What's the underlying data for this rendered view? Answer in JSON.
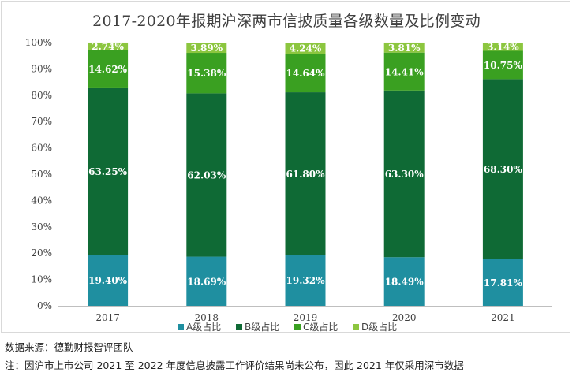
{
  "chart_data": {
    "type": "bar",
    "stacked": true,
    "title": "2017-2020年报期沪深两市信披质量各级数量及比例变动",
    "categories": [
      "2017",
      "2018",
      "2019",
      "2020",
      "2021"
    ],
    "series": [
      {
        "name": "A级占比",
        "color": "#1f8fa0",
        "values": [
          19.4,
          18.69,
          19.32,
          18.49,
          17.81
        ],
        "labels": [
          "19.40%",
          "18.69%",
          "19.32%",
          "18.49%",
          "17.81%"
        ]
      },
      {
        "name": "B级占比",
        "color": "#0f6a35",
        "values": [
          63.25,
          62.03,
          61.8,
          63.3,
          68.3
        ],
        "labels": [
          "63.25%",
          "62.03%",
          "61.80%",
          "63.30%",
          "68.30%"
        ]
      },
      {
        "name": "C级占比",
        "color": "#3aa021",
        "values": [
          14.62,
          15.38,
          14.64,
          14.41,
          10.75
        ],
        "labels": [
          "14.62%",
          "15.38%",
          "14.64%",
          "14.41%",
          "10.75%"
        ]
      },
      {
        "name": "D级占比",
        "color": "#8cc63f",
        "values": [
          2.74,
          3.89,
          4.24,
          3.81,
          3.14
        ],
        "labels": [
          "2.74%",
          "3.89%",
          "4.24%",
          "3.81%",
          "3.14%"
        ]
      }
    ],
    "yticks": [
      "0%",
      "10%",
      "20%",
      "30%",
      "40%",
      "50%",
      "60%",
      "70%",
      "80%",
      "90%",
      "100%"
    ],
    "ylim": [
      0,
      100
    ],
    "xlabel": "",
    "ylabel": "",
    "legend": "bottom",
    "grid": false
  },
  "footer": {
    "source": "数据来源：德勤财报智评团队",
    "note": "注：因沪市上市公司 2021 至 2022 年度信息披露工作评价结果尚未公布，因此 2021 年仅采用深市数据"
  }
}
